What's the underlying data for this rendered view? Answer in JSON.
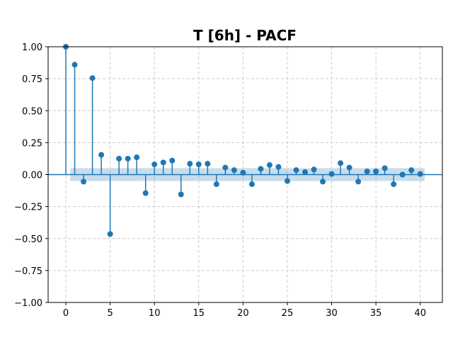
{
  "chart_data": {
    "type": "stem",
    "title": "T [6h] - PACF",
    "xlabel": "",
    "ylabel": "",
    "xlim": [
      -2,
      42.5
    ],
    "ylim": [
      -1.0,
      1.0
    ],
    "x_ticks": [
      0,
      5,
      10,
      15,
      20,
      25,
      30,
      35,
      40
    ],
    "y_ticks": [
      -1.0,
      -0.75,
      -0.5,
      -0.25,
      0.0,
      0.25,
      0.5,
      0.75,
      1.0
    ],
    "y_tick_labels": [
      "−1.00",
      "−0.75",
      "−0.50",
      "−0.25",
      "0.00",
      "0.25",
      "0.50",
      "0.75",
      "1.00"
    ],
    "grid": true,
    "confidence_interval": {
      "lower": -0.05,
      "upper": 0.05,
      "x_start": 0.5,
      "x_end": 40.5
    },
    "lags": [
      0,
      1,
      2,
      3,
      4,
      5,
      6,
      7,
      8,
      9,
      10,
      11,
      12,
      13,
      14,
      15,
      16,
      17,
      18,
      19,
      20,
      21,
      22,
      23,
      24,
      25,
      26,
      27,
      28,
      29,
      30,
      31,
      32,
      33,
      34,
      35,
      36,
      37,
      38,
      39,
      40
    ],
    "values": [
      1.0,
      0.86,
      -0.055,
      0.755,
      0.155,
      -0.465,
      0.125,
      0.125,
      0.135,
      -0.145,
      0.08,
      0.095,
      0.11,
      -0.155,
      0.085,
      0.08,
      0.085,
      -0.075,
      0.055,
      0.035,
      0.015,
      -0.075,
      0.045,
      0.075,
      0.06,
      -0.05,
      0.035,
      0.02,
      0.04,
      -0.055,
      0.005,
      0.09,
      0.055,
      -0.055,
      0.025,
      0.025,
      0.05,
      -0.075,
      0.0,
      0.035,
      0.005
    ],
    "colors": {
      "series": "#1f77b4",
      "grid": "#cccccc"
    }
  }
}
